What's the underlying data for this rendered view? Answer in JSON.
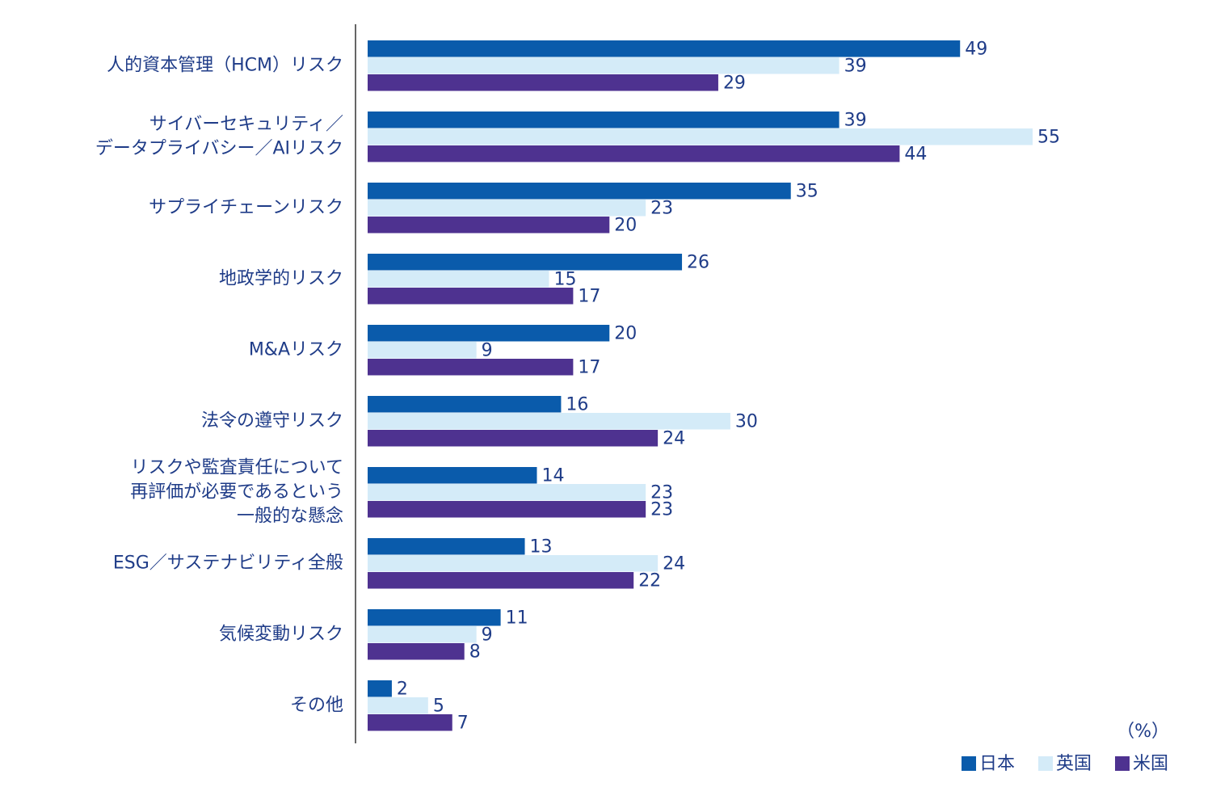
{
  "chart_data": {
    "type": "bar",
    "orientation": "horizontal",
    "categories": [
      [
        "人的資本管理（HCM）リスク"
      ],
      [
        "サイバーセキュリティ／",
        "データプライバシー／AIリスク"
      ],
      [
        "サプライチェーンリスク"
      ],
      [
        "地政学的リスク"
      ],
      [
        "M&Aリスク"
      ],
      [
        "法令の遵守リスク"
      ],
      [
        "リスクや監査責任について",
        "再評価が必要であるという",
        "一般的な懸念"
      ],
      [
        "ESG／サステナビリティ全般"
      ],
      [
        "気候変動リスク"
      ],
      [
        "その他"
      ]
    ],
    "series": [
      {
        "name": "日本",
        "color": "#0a5bab",
        "values": [
          49,
          39,
          35,
          26,
          20,
          16,
          14,
          13,
          11,
          2
        ]
      },
      {
        "name": "英国",
        "color": "#d4ebf8",
        "values": [
          39,
          55,
          23,
          15,
          9,
          30,
          23,
          24,
          9,
          5
        ]
      },
      {
        "name": "米国",
        "color": "#4e3290",
        "values": [
          29,
          44,
          20,
          17,
          17,
          24,
          23,
          22,
          8,
          7
        ]
      }
    ],
    "unit_label": "（%）",
    "legend": "bottom-right"
  }
}
